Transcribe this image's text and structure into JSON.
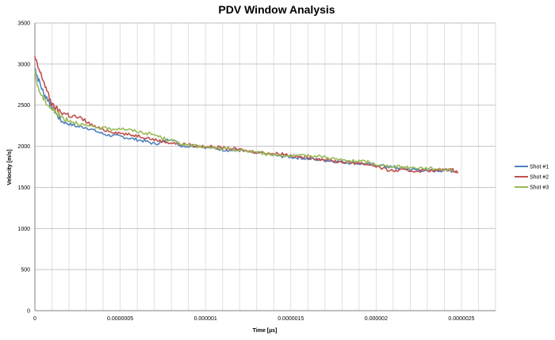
{
  "chart_data": {
    "type": "line",
    "title": "PDV Window Analysis",
    "xlabel": "Time [µs]",
    "ylabel": "Velocity [m/s]",
    "xlim": [
      0,
      2.7e-06
    ],
    "ylim": [
      0,
      3500
    ],
    "x_ticks": [
      0,
      5e-07,
      1e-06,
      1.5e-06,
      2e-06,
      2.5e-06
    ],
    "x_tick_labels": [
      "0",
      "0.0000005",
      "0.000001",
      "0.0000015",
      "0.000002",
      "0.0000025"
    ],
    "y_ticks": [
      0,
      500,
      1000,
      1500,
      2000,
      2500,
      3000,
      3500
    ],
    "y_tick_labels": [
      "0",
      "500",
      "1000",
      "1500",
      "2000",
      "2500",
      "3000",
      "3500"
    ],
    "grid": true,
    "legend_position": "right",
    "series": [
      {
        "name": "Shot #1",
        "color": "#4F81BD",
        "points": [
          [
            0,
            2950
          ],
          [
            2e-08,
            2820
          ],
          [
            5e-08,
            2650
          ],
          [
            8e-08,
            2560
          ],
          [
            1e-07,
            2480
          ],
          [
            1.3e-07,
            2380
          ],
          [
            1.6e-07,
            2300
          ],
          [
            2e-07,
            2270
          ],
          [
            2.5e-07,
            2240
          ],
          [
            3e-07,
            2230
          ],
          [
            3.5e-07,
            2190
          ],
          [
            4e-07,
            2150
          ],
          [
            4.5e-07,
            2130
          ],
          [
            5e-07,
            2120
          ],
          [
            5.5e-07,
            2100
          ],
          [
            6e-07,
            2080
          ],
          [
            6.5e-07,
            2060
          ],
          [
            7e-07,
            2030
          ],
          [
            7.5e-07,
            2050
          ],
          [
            8e-07,
            2100
          ],
          [
            8.5e-07,
            2010
          ],
          [
            9e-07,
            2000
          ],
          [
            9.5e-07,
            2010
          ],
          [
            1e-06,
            1990
          ],
          [
            1.05e-06,
            1980
          ],
          [
            1.1e-06,
            1960
          ],
          [
            1.15e-06,
            1950
          ],
          [
            1.2e-06,
            1950
          ],
          [
            1.25e-06,
            1930
          ],
          [
            1.3e-06,
            1920
          ],
          [
            1.35e-06,
            1910
          ],
          [
            1.4e-06,
            1890
          ],
          [
            1.45e-06,
            1880
          ],
          [
            1.5e-06,
            1870
          ],
          [
            1.55e-06,
            1860
          ],
          [
            1.6e-06,
            1850
          ],
          [
            1.65e-06,
            1840
          ],
          [
            1.7e-06,
            1830
          ],
          [
            1.75e-06,
            1820
          ],
          [
            1.8e-06,
            1810
          ],
          [
            1.85e-06,
            1800
          ],
          [
            1.9e-06,
            1790
          ],
          [
            1.95e-06,
            1780
          ],
          [
            2e-06,
            1770
          ],
          [
            2.05e-06,
            1760
          ],
          [
            2.1e-06,
            1740
          ],
          [
            2.15e-06,
            1730
          ],
          [
            2.2e-06,
            1720
          ],
          [
            2.25e-06,
            1710
          ],
          [
            2.3e-06,
            1710
          ],
          [
            2.35e-06,
            1700
          ],
          [
            2.4e-06,
            1710
          ],
          [
            2.45e-06,
            1700
          ]
        ]
      },
      {
        "name": "Shot #2",
        "color": "#C0504D",
        "points": [
          [
            0,
            3080
          ],
          [
            2e-08,
            2950
          ],
          [
            5e-08,
            2800
          ],
          [
            8e-08,
            2620
          ],
          [
            1e-07,
            2500
          ],
          [
            1.3e-07,
            2450
          ],
          [
            1.6e-07,
            2410
          ],
          [
            2e-07,
            2380
          ],
          [
            2.5e-07,
            2350
          ],
          [
            3e-07,
            2300
          ],
          [
            3.5e-07,
            2240
          ],
          [
            4e-07,
            2200
          ],
          [
            4.5e-07,
            2180
          ],
          [
            5e-07,
            2160
          ],
          [
            5.5e-07,
            2140
          ],
          [
            6e-07,
            2130
          ],
          [
            6.5e-07,
            2110
          ],
          [
            7e-07,
            2080
          ],
          [
            7.5e-07,
            2060
          ],
          [
            8e-07,
            2040
          ],
          [
            8.5e-07,
            2030
          ],
          [
            9e-07,
            2020
          ],
          [
            9.5e-07,
            2000
          ],
          [
            1e-06,
            2000
          ],
          [
            1.05e-06,
            1990
          ],
          [
            1.1e-06,
            1980
          ],
          [
            1.15e-06,
            1970
          ],
          [
            1.2e-06,
            1960
          ],
          [
            1.25e-06,
            1940
          ],
          [
            1.3e-06,
            1930
          ],
          [
            1.35e-06,
            1920
          ],
          [
            1.4e-06,
            1910
          ],
          [
            1.45e-06,
            1910
          ],
          [
            1.5e-06,
            1890
          ],
          [
            1.55e-06,
            1870
          ],
          [
            1.6e-06,
            1860
          ],
          [
            1.65e-06,
            1850
          ],
          [
            1.7e-06,
            1840
          ],
          [
            1.75e-06,
            1820
          ],
          [
            1.8e-06,
            1810
          ],
          [
            1.85e-06,
            1800
          ],
          [
            1.9e-06,
            1800
          ],
          [
            1.95e-06,
            1780
          ],
          [
            2e-06,
            1760
          ],
          [
            2.05e-06,
            1720
          ],
          [
            2.1e-06,
            1700
          ],
          [
            2.15e-06,
            1710
          ],
          [
            2.2e-06,
            1700
          ],
          [
            2.25e-06,
            1700
          ],
          [
            2.3e-06,
            1710
          ],
          [
            2.35e-06,
            1700
          ],
          [
            2.4e-06,
            1720
          ],
          [
            2.45e-06,
            1710
          ],
          [
            2.48e-06,
            1690
          ]
        ]
      },
      {
        "name": "Shot #3",
        "color": "#9BBB59",
        "points": [
          [
            0,
            2900
          ],
          [
            2e-08,
            2700
          ],
          [
            5e-08,
            2580
          ],
          [
            8e-08,
            2500
          ],
          [
            1e-07,
            2450
          ],
          [
            1.3e-07,
            2400
          ],
          [
            1.6e-07,
            2350
          ],
          [
            2e-07,
            2320
          ],
          [
            2.5e-07,
            2280
          ],
          [
            3e-07,
            2250
          ],
          [
            3.5e-07,
            2230
          ],
          [
            4e-07,
            2220
          ],
          [
            4.5e-07,
            2210
          ],
          [
            5e-07,
            2220
          ],
          [
            5.5e-07,
            2200
          ],
          [
            6e-07,
            2180
          ],
          [
            6.5e-07,
            2160
          ],
          [
            7e-07,
            2140
          ],
          [
            7.5e-07,
            2100
          ],
          [
            8e-07,
            2070
          ],
          [
            8.5e-07,
            2040
          ],
          [
            9e-07,
            2010
          ],
          [
            9.5e-07,
            2000
          ],
          [
            1e-06,
            1990
          ],
          [
            1.05e-06,
            1980
          ],
          [
            1.1e-06,
            1970
          ],
          [
            1.15e-06,
            1960
          ],
          [
            1.2e-06,
            1950
          ],
          [
            1.25e-06,
            1940
          ],
          [
            1.3e-06,
            1930
          ],
          [
            1.35e-06,
            1910
          ],
          [
            1.4e-06,
            1900
          ],
          [
            1.45e-06,
            1890
          ],
          [
            1.5e-06,
            1880
          ],
          [
            1.55e-06,
            1880
          ],
          [
            1.6e-06,
            1890
          ],
          [
            1.65e-06,
            1880
          ],
          [
            1.7e-06,
            1870
          ],
          [
            1.75e-06,
            1850
          ],
          [
            1.8e-06,
            1830
          ],
          [
            1.85e-06,
            1820
          ],
          [
            1.9e-06,
            1820
          ],
          [
            1.95e-06,
            1810
          ],
          [
            2e-06,
            1780
          ],
          [
            2.05e-06,
            1760
          ],
          [
            2.1e-06,
            1760
          ],
          [
            2.15e-06,
            1750
          ],
          [
            2.2e-06,
            1740
          ],
          [
            2.25e-06,
            1740
          ],
          [
            2.3e-06,
            1730
          ],
          [
            2.35e-06,
            1730
          ],
          [
            2.4e-06,
            1720
          ],
          [
            2.45e-06,
            1710
          ]
        ]
      }
    ]
  }
}
